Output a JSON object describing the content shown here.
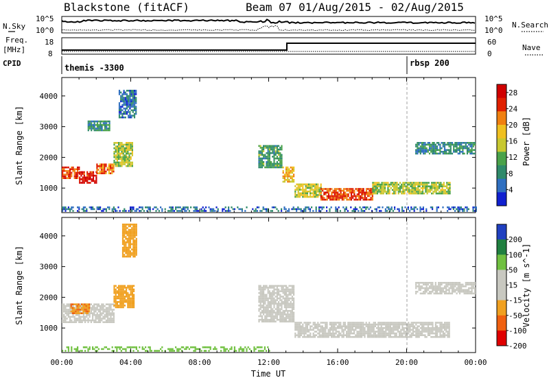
{
  "header": {
    "title": "Blackstone (fitACF)",
    "beam_dates": "Beam 07 01/Aug/2015 - 02/Aug/2015"
  },
  "top_panels": {
    "nsky_label": "N.Sky",
    "nsky_ticks": [
      "10^5",
      "10^0"
    ],
    "nsearch_label": "N.Search",
    "nsearch_ticks": [
      "10^5",
      "10^0"
    ],
    "freq_label_1": "Freq.",
    "freq_label_2": "[MHz]",
    "freq_ticks": [
      "18",
      "8"
    ],
    "nave_label": "Nave",
    "nave_ticks": [
      "60",
      "0"
    ],
    "cpid_label": "CPID",
    "cpid_entries": [
      {
        "label": "themis -3300",
        "start_hour": 0
      },
      {
        "label": "rbsp 200",
        "start_hour": 20
      }
    ]
  },
  "chart_data": [
    {
      "type": "heatmap",
      "title": "Power",
      "xlabel": "Time UT",
      "ylabel": "Slant Range [km]",
      "xlim": [
        0,
        24
      ],
      "ylim": [
        200,
        4600
      ],
      "x_ticks": [
        "00:00",
        "04:00",
        "08:00",
        "12:00",
        "16:00",
        "20:00",
        "00:00"
      ],
      "y_ticks": [
        1000,
        2000,
        3000,
        4000
      ],
      "colorbar_label": "Power [dB]",
      "colorbar_ticks": [
        4,
        8,
        12,
        16,
        20,
        24,
        28
      ],
      "colorbar_range": [
        0,
        30
      ],
      "colorscale": [
        "#1020d0",
        "#2f6fc0",
        "#2f8a6a",
        "#4aa24a",
        "#c8c830",
        "#f0c020",
        "#f08010",
        "#e02000",
        "#d00000"
      ],
      "echo_regions": [
        {
          "t0": 0.0,
          "t1": 1.0,
          "r0": 1350,
          "r1": 1700,
          "level": 24
        },
        {
          "t0": 1.0,
          "t1": 2.0,
          "r0": 1200,
          "r1": 1550,
          "level": 27
        },
        {
          "t0": 2.0,
          "t1": 3.0,
          "r0": 1500,
          "r1": 1800,
          "level": 22
        },
        {
          "t0": 3.0,
          "t1": 4.1,
          "r0": 1700,
          "r1": 2500,
          "level": 14
        },
        {
          "t0": 1.5,
          "t1": 2.8,
          "r0": 2900,
          "r1": 3200,
          "level": 9
        },
        {
          "t0": 3.3,
          "t1": 4.3,
          "r0": 3300,
          "r1": 4200,
          "level": 6
        },
        {
          "t0": 11.4,
          "t1": 12.8,
          "r0": 1700,
          "r1": 2400,
          "level": 10
        },
        {
          "t0": 12.8,
          "t1": 13.5,
          "r0": 1200,
          "r1": 1700,
          "level": 18
        },
        {
          "t0": 13.5,
          "t1": 15.0,
          "r0": 700,
          "r1": 1150,
          "level": 16
        },
        {
          "t0": 15.0,
          "t1": 18.0,
          "r0": 600,
          "r1": 1000,
          "level": 24
        },
        {
          "t0": 18.0,
          "t1": 22.5,
          "r0": 800,
          "r1": 1200,
          "level": 14
        },
        {
          "t0": 20.5,
          "t1": 24.0,
          "r0": 2100,
          "r1": 2500,
          "level": 8
        },
        {
          "t0": 0.0,
          "t1": 24.0,
          "r0": 250,
          "r1": 400,
          "level": 5
        }
      ]
    },
    {
      "type": "heatmap",
      "title": "Velocity",
      "xlabel": "Time UT",
      "ylabel": "Slant Range [km]",
      "xlim": [
        0,
        24
      ],
      "ylim": [
        200,
        4600
      ],
      "x_ticks": [
        "00:00",
        "04:00",
        "08:00",
        "12:00",
        "16:00",
        "20:00",
        "00:00"
      ],
      "y_ticks": [
        1000,
        2000,
        3000,
        4000
      ],
      "colorbar_label": "Velocity [m s^-1]",
      "colorbar_ticks": [
        200,
        100,
        50,
        15,
        -15,
        -50,
        -100,
        -200
      ],
      "colorbar_range": [
        -250,
        250
      ],
      "colorscale": [
        "#e00000",
        "#f06010",
        "#f0a020",
        "#c8c8c0",
        "#c8c8c0",
        "#70c040",
        "#208040",
        "#2040c0"
      ],
      "ground_scatter_color": "#c8c8c0",
      "echo_regions": [
        {
          "t0": 0.0,
          "t1": 3.0,
          "r0": 1200,
          "r1": 1800,
          "level": 0
        },
        {
          "t0": 0.5,
          "t1": 1.6,
          "r0": 1500,
          "r1": 1800,
          "level": -70
        },
        {
          "t0": 3.0,
          "t1": 4.2,
          "r0": 1700,
          "r1": 2400,
          "level": -60
        },
        {
          "t0": 3.5,
          "t1": 4.3,
          "r0": 3300,
          "r1": 4400,
          "level": -60
        },
        {
          "t0": 11.4,
          "t1": 13.5,
          "r0": 1200,
          "r1": 2400,
          "level": 0
        },
        {
          "t0": 13.5,
          "t1": 22.5,
          "r0": 700,
          "r1": 1200,
          "level": 0
        },
        {
          "t0": 20.5,
          "t1": 24.0,
          "r0": 2100,
          "r1": 2500,
          "level": 0
        },
        {
          "t0": 0.0,
          "t1": 12.0,
          "r0": 250,
          "r1": 400,
          "level": 40
        }
      ]
    }
  ]
}
